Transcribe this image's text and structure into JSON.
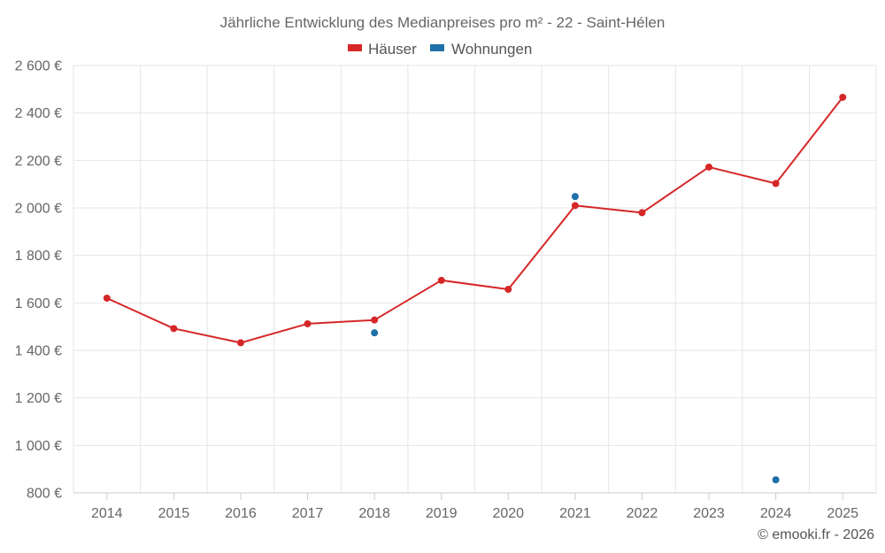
{
  "chart_data": {
    "type": "line",
    "title": "Jährliche Entwicklung des Medianpreises pro m² - 22 - Saint-Hélen",
    "xlabel": "",
    "ylabel": "",
    "categories": [
      "2014",
      "2015",
      "2016",
      "2017",
      "2018",
      "2019",
      "2020",
      "2021",
      "2022",
      "2023",
      "2024",
      "2025"
    ],
    "ylim": [
      800,
      2600
    ],
    "yticks": [
      800,
      1000,
      1200,
      1400,
      1600,
      1800,
      2000,
      2200,
      2400,
      2600
    ],
    "ytick_labels": [
      "800 €",
      "1 000 €",
      "1 200 €",
      "1 400 €",
      "1 600 €",
      "1 800 €",
      "2 000 €",
      "2 200 €",
      "2 400 €",
      "2 600 €"
    ],
    "grid": true,
    "legend_position": "top-center",
    "series": [
      {
        "name": "Häuser",
        "color": "#d62728",
        "style": "line",
        "values": [
          1620,
          1492,
          1432,
          1512,
          1528,
          1695,
          1657,
          2010,
          1980,
          2172,
          2103,
          2466
        ]
      },
      {
        "name": "Wohnungen",
        "color": "#1f6fa8",
        "style": "points",
        "values": [
          null,
          null,
          null,
          null,
          1474,
          null,
          null,
          2048,
          null,
          null,
          855,
          null
        ]
      }
    ]
  },
  "credit": "© emooki.fr - 2026"
}
